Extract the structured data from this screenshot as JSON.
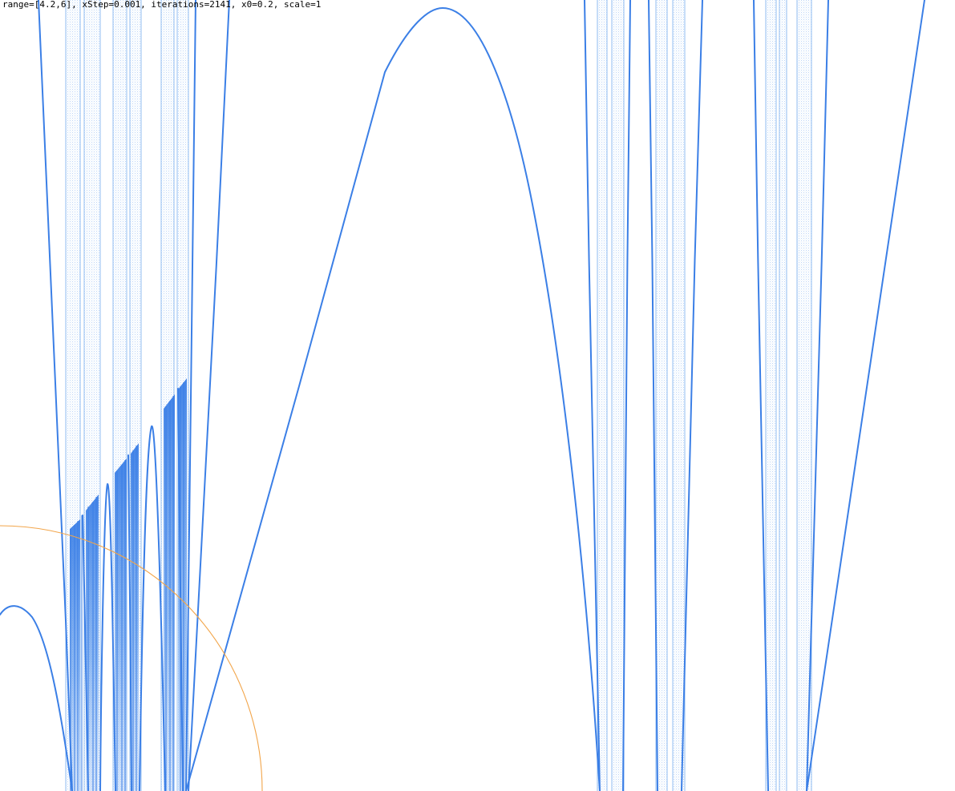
{
  "header": {
    "params_text": "range=[4.2,6], xStep=0.001, iterations=2141, x0=0.2, scale=1"
  },
  "colors": {
    "background": "#ffffff",
    "curve": "#3b7fe6",
    "band_fill": "#d6e6fb",
    "band_edge": "#9cc2f2",
    "circle": "#f2a54a",
    "text": "#000000"
  },
  "chart_data": {
    "type": "scatter",
    "title": "",
    "xlabel": "",
    "ylabel": "",
    "xlim": [
      4.2,
      6.0
    ],
    "x_step": 0.001,
    "iterations": 2141,
    "x0": 0.2,
    "scale": 1,
    "grid": false,
    "legend": "none",
    "series": [
      {
        "kind": "curve-branches",
        "count": 11
      },
      {
        "kind": "chaotic-bands",
        "count": 15
      },
      {
        "kind": "dense-cluster-regions",
        "count": 3
      },
      {
        "kind": "reference-circle",
        "count": 1
      }
    ]
  }
}
